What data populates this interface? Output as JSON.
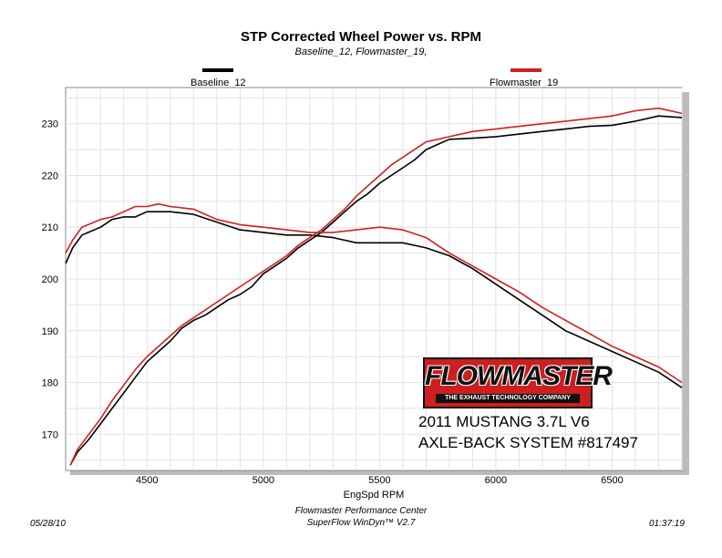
{
  "chart_data": {
    "type": "line",
    "title": "STP Corrected Wheel Power vs. RPM",
    "subtitle": "Baseline_12, Flowmaster_19,",
    "xlabel": "EngSpd  RPM",
    "ylabel": "",
    "xlim": [
      4150,
      6800
    ],
    "ylim": [
      163,
      237
    ],
    "xticks": [
      4500,
      5000,
      5500,
      6000,
      6500
    ],
    "yticks": [
      170,
      180,
      190,
      200,
      210,
      220,
      230
    ],
    "grid": true,
    "legend_position": "top",
    "series": [
      {
        "name": "Baseline_12",
        "color": "#000000",
        "role": "power",
        "points": [
          [
            4170,
            164
          ],
          [
            4200,
            166.5
          ],
          [
            4250,
            169
          ],
          [
            4300,
            172
          ],
          [
            4350,
            175
          ],
          [
            4400,
            178
          ],
          [
            4450,
            181
          ],
          [
            4500,
            184
          ],
          [
            4550,
            186
          ],
          [
            4600,
            188
          ],
          [
            4650,
            190.5
          ],
          [
            4700,
            192
          ],
          [
            4750,
            193
          ],
          [
            4800,
            194.5
          ],
          [
            4850,
            196
          ],
          [
            4900,
            197
          ],
          [
            4950,
            198.5
          ],
          [
            5000,
            201
          ],
          [
            5050,
            202.5
          ],
          [
            5100,
            204
          ],
          [
            5150,
            206
          ],
          [
            5200,
            207.5
          ],
          [
            5250,
            209
          ],
          [
            5300,
            211
          ],
          [
            5350,
            213
          ],
          [
            5400,
            215
          ],
          [
            5450,
            216.5
          ],
          [
            5500,
            218.5
          ],
          [
            5550,
            220
          ],
          [
            5600,
            221.5
          ],
          [
            5650,
            223
          ],
          [
            5700,
            225
          ],
          [
            5750,
            226
          ],
          [
            5800,
            227
          ],
          [
            5900,
            227.2
          ],
          [
            6000,
            227.5
          ],
          [
            6100,
            228
          ],
          [
            6200,
            228.5
          ],
          [
            6300,
            229
          ],
          [
            6400,
            229.5
          ],
          [
            6500,
            229.7
          ],
          [
            6600,
            230.5
          ],
          [
            6700,
            231.5
          ],
          [
            6800,
            231.2
          ]
        ]
      },
      {
        "name": "Baseline_12",
        "color": "#000000",
        "role": "torque",
        "points": [
          [
            4150,
            203
          ],
          [
            4180,
            206
          ],
          [
            4220,
            208.5
          ],
          [
            4300,
            210
          ],
          [
            4350,
            211.5
          ],
          [
            4400,
            212
          ],
          [
            4450,
            212
          ],
          [
            4500,
            213
          ],
          [
            4550,
            213
          ],
          [
            4600,
            213
          ],
          [
            4700,
            212.5
          ],
          [
            4800,
            211
          ],
          [
            4900,
            209.5
          ],
          [
            5000,
            209
          ],
          [
            5100,
            208.5
          ],
          [
            5200,
            208.5
          ],
          [
            5300,
            208
          ],
          [
            5400,
            207
          ],
          [
            5500,
            207
          ],
          [
            5600,
            207
          ],
          [
            5700,
            206
          ],
          [
            5800,
            204.5
          ],
          [
            5900,
            202
          ],
          [
            6000,
            199
          ],
          [
            6100,
            196
          ],
          [
            6200,
            193
          ],
          [
            6300,
            190
          ],
          [
            6400,
            188
          ],
          [
            6500,
            186
          ],
          [
            6600,
            184
          ],
          [
            6700,
            182
          ],
          [
            6800,
            179
          ]
        ]
      },
      {
        "name": "Flowmaster_19",
        "color": "#d02020",
        "role": "power",
        "points": [
          [
            4170,
            164
          ],
          [
            4200,
            167
          ],
          [
            4250,
            170
          ],
          [
            4300,
            173
          ],
          [
            4350,
            176.5
          ],
          [
            4400,
            179.5
          ],
          [
            4450,
            182.5
          ],
          [
            4500,
            185
          ],
          [
            4550,
            187
          ],
          [
            4600,
            189
          ],
          [
            4650,
            191
          ],
          [
            4700,
            192.5
          ],
          [
            4750,
            194
          ],
          [
            4800,
            195.5
          ],
          [
            4850,
            197
          ],
          [
            4900,
            198.5
          ],
          [
            4950,
            200
          ],
          [
            5000,
            201.5
          ],
          [
            5050,
            203
          ],
          [
            5100,
            204.5
          ],
          [
            5150,
            206.5
          ],
          [
            5200,
            208
          ],
          [
            5250,
            209.5
          ],
          [
            5300,
            211.5
          ],
          [
            5350,
            213.5
          ],
          [
            5400,
            216
          ],
          [
            5450,
            218
          ],
          [
            5500,
            220
          ],
          [
            5550,
            222
          ],
          [
            5600,
            223.5
          ],
          [
            5650,
            225
          ],
          [
            5700,
            226.5
          ],
          [
            5750,
            227
          ],
          [
            5800,
            227.5
          ],
          [
            5900,
            228.5
          ],
          [
            6000,
            229
          ],
          [
            6100,
            229.5
          ],
          [
            6200,
            230
          ],
          [
            6300,
            230.5
          ],
          [
            6400,
            231
          ],
          [
            6500,
            231.5
          ],
          [
            6600,
            232.5
          ],
          [
            6700,
            233
          ],
          [
            6800,
            232
          ]
        ]
      },
      {
        "name": "Flowmaster_19",
        "color": "#d02020",
        "role": "torque",
        "points": [
          [
            4150,
            205
          ],
          [
            4180,
            207.5
          ],
          [
            4220,
            210
          ],
          [
            4300,
            211.5
          ],
          [
            4350,
            212
          ],
          [
            4400,
            213
          ],
          [
            4450,
            214
          ],
          [
            4500,
            214
          ],
          [
            4550,
            214.5
          ],
          [
            4600,
            214
          ],
          [
            4700,
            213.5
          ],
          [
            4800,
            211.5
          ],
          [
            4900,
            210.5
          ],
          [
            5000,
            210
          ],
          [
            5100,
            209.5
          ],
          [
            5200,
            209
          ],
          [
            5300,
            209
          ],
          [
            5400,
            209.5
          ],
          [
            5500,
            210
          ],
          [
            5600,
            209.5
          ],
          [
            5700,
            208
          ],
          [
            5800,
            205
          ],
          [
            5900,
            202.5
          ],
          [
            6000,
            200
          ],
          [
            6100,
            197.5
          ],
          [
            6200,
            194.5
          ],
          [
            6300,
            192
          ],
          [
            6400,
            189.5
          ],
          [
            6500,
            187
          ],
          [
            6600,
            185
          ],
          [
            6700,
            183
          ],
          [
            6800,
            180
          ]
        ]
      }
    ]
  },
  "legend": {
    "baseline_label": "Baseline_12",
    "flowmaster_label": "Flowmaster_19",
    "baseline_color": "#000000",
    "flowmaster_color": "#d02020"
  },
  "logo": {
    "word": "FLOWMASTER",
    "tagline": "THE EXHAUST TECHNOLOGY COMPANY"
  },
  "caption": {
    "line1": "2011 MUSTANG 3.7L V6",
    "line2": "AXLE-BACK SYSTEM #817497"
  },
  "footer": {
    "date": "05/28/10",
    "center_line1": "Flowmaster Performance Center",
    "center_line2": "SuperFlow WinDyn™ V2.7",
    "time": "01:37:19"
  }
}
